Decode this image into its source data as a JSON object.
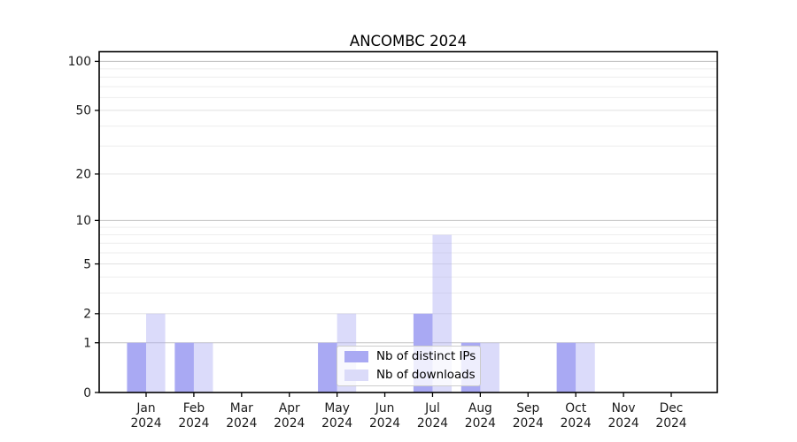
{
  "window": {
    "background": "#ffffff"
  },
  "chart_data": {
    "type": "bar",
    "title": "ANCOMBC 2024",
    "categories": [
      "Jan",
      "Feb",
      "Mar",
      "Apr",
      "May",
      "Jun",
      "Jul",
      "Aug",
      "Sep",
      "Oct",
      "Nov",
      "Dec"
    ],
    "year_label": "2024",
    "series": [
      {
        "name": "Nb of distinct IPs",
        "color": "#a9a9f3",
        "fill_opacity": 1,
        "values": [
          1,
          1,
          0,
          0,
          1,
          0,
          2,
          1,
          0,
          1,
          0,
          0
        ]
      },
      {
        "name": "Nb of downloads",
        "color": "#a9a9f3",
        "fill_opacity": 0.42,
        "values": [
          2,
          1,
          0,
          0,
          2,
          0,
          8,
          1,
          0,
          1,
          0,
          0
        ]
      }
    ],
    "xlabel": "",
    "ylabel": "",
    "y_scale": "log10(1+value)",
    "y_ticks": [
      0,
      1,
      2,
      5,
      10,
      20,
      50,
      100
    ],
    "y_decade_ticks": [
      1,
      10,
      100
    ],
    "y_minor_gridlines": [
      3,
      4,
      6,
      7,
      8,
      9,
      30,
      40,
      60,
      70,
      80,
      90
    ],
    "ylim": [
      0,
      100
    ],
    "grid": true,
    "legend_position": "lower center"
  },
  "legend": {
    "items": [
      {
        "label": "Nb of distinct IPs",
        "swatch_color": "#a9a9f3"
      },
      {
        "label": "Nb of downloads",
        "swatch_color": "#dbdbf9"
      }
    ]
  },
  "colors": {
    "grid_decade": "#c2c2c2",
    "grid_labeled": "#e4e4e4",
    "grid_minor": "#ededed",
    "axis": "#000000",
    "text": "#1a1a1a",
    "legend_border": "#cccccc"
  }
}
